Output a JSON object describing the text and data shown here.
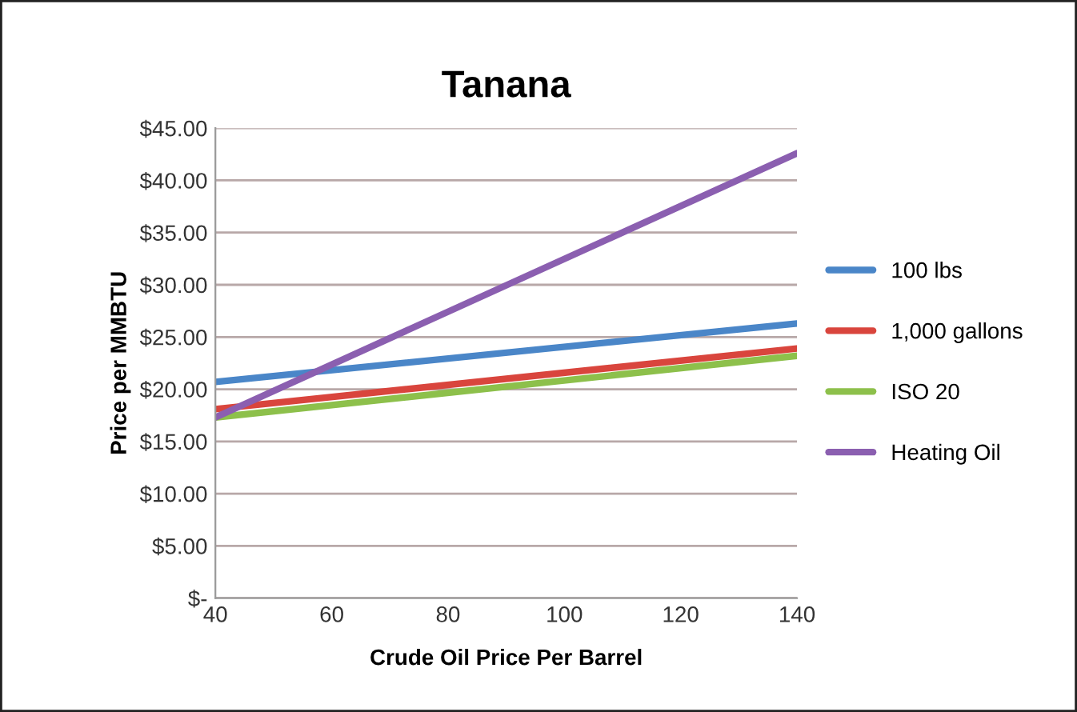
{
  "chart_data": {
    "type": "line",
    "title": "Tanana",
    "xlabel": "Crude Oil Price Per Barrel",
    "ylabel": "Price per MMBTU",
    "x": [
      40,
      140
    ],
    "series": [
      {
        "name": "100 lbs",
        "color": "#4a86c8",
        "values": [
          20.7,
          26.3
        ]
      },
      {
        "name": "1,000 gallons",
        "color": "#d9453d",
        "values": [
          18.1,
          23.9
        ]
      },
      {
        "name": "ISO 20",
        "color": "#8dc04b",
        "values": [
          17.3,
          23.2
        ]
      },
      {
        "name": "Heating Oil",
        "color": "#8b5fb0",
        "values": [
          17.3,
          42.6
        ]
      }
    ],
    "xlim": [
      40,
      140
    ],
    "xticks": [
      40,
      60,
      80,
      100,
      120,
      140
    ],
    "ylim": [
      0,
      45
    ],
    "yticks": [
      {
        "value": 0,
        "label": "$-"
      },
      {
        "value": 5,
        "label": "$5.00"
      },
      {
        "value": 10,
        "label": "$10.00"
      },
      {
        "value": 15,
        "label": "$15.00"
      },
      {
        "value": 20,
        "label": "$20.00"
      },
      {
        "value": 25,
        "label": "$25.00"
      },
      {
        "value": 30,
        "label": "$30.00"
      },
      {
        "value": 35,
        "label": "$35.00"
      },
      {
        "value": 40,
        "label": "$40.00"
      },
      {
        "value": 45,
        "label": "$45.00"
      }
    ],
    "grid": "y",
    "legend": "right",
    "marker": "none",
    "line_style": "solid"
  }
}
